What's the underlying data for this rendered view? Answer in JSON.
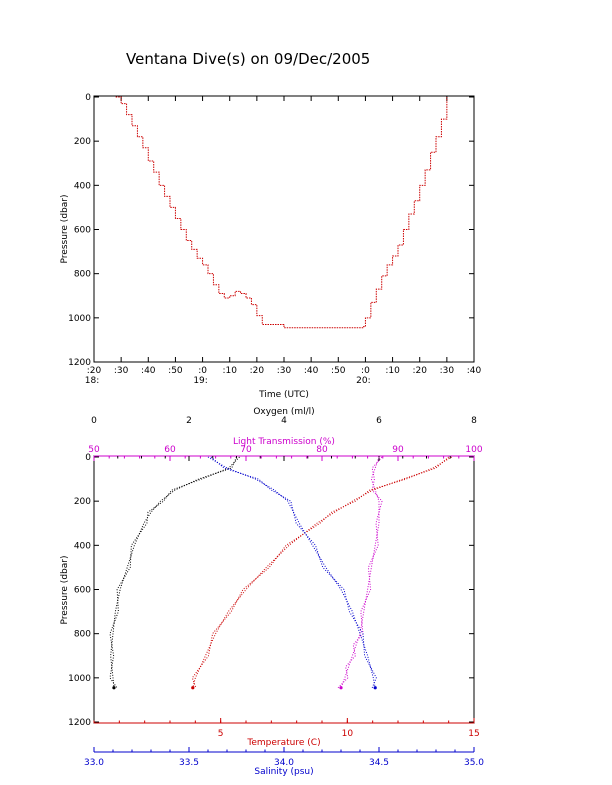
{
  "title": "Ventana Dive(s) on 09/Dec/2005",
  "chart_data": [
    {
      "type": "line",
      "xlabel": "Time (UTC)",
      "ylabel": "Pressure (dbar)",
      "ylim": [
        1200,
        0
      ],
      "xlim": [
        "18:20",
        "20:40"
      ],
      "y_ticks": [
        "0",
        "200",
        "400",
        "600",
        "800",
        "1000",
        "1200"
      ],
      "x_ticks": [
        {
          "minute": ":20",
          "hour": "18:"
        },
        {
          "minute": ":30",
          "hour": ""
        },
        {
          "minute": ":40",
          "hour": ""
        },
        {
          "minute": ":50",
          "hour": ""
        },
        {
          "minute": ":0",
          "hour": "19:"
        },
        {
          "minute": ":10",
          "hour": ""
        },
        {
          "minute": ":20",
          "hour": ""
        },
        {
          "minute": ":30",
          "hour": ""
        },
        {
          "minute": ":40",
          "hour": ""
        },
        {
          "minute": ":50",
          "hour": ""
        },
        {
          "minute": ":0",
          "hour": "20:"
        },
        {
          "minute": ":10",
          "hour": ""
        },
        {
          "minute": ":20",
          "hour": ""
        },
        {
          "minute": ":30",
          "hour": ""
        },
        {
          "minute": ":40",
          "hour": ""
        }
      ],
      "series": [
        {
          "color": "#cc0000",
          "x": [
            "18:28",
            "18:30",
            "18:32",
            "18:34",
            "18:36",
            "18:38",
            "18:40",
            "18:42",
            "18:44",
            "18:46",
            "18:48",
            "18:50",
            "18:52",
            "18:54",
            "18:56",
            "18:58",
            "19:00",
            "19:02",
            "19:04",
            "19:06",
            "19:08",
            "19:10",
            "19:12",
            "19:14",
            "19:16",
            "19:18",
            "19:20",
            "19:22",
            "19:30",
            "19:40",
            "19:50",
            "19:59",
            "20:00",
            "20:02",
            "20:04",
            "20:06",
            "20:08",
            "20:10",
            "20:12",
            "20:14",
            "20:16",
            "20:18",
            "20:20",
            "20:22",
            "20:24",
            "20:26",
            "20:28",
            "20:30"
          ],
          "y": [
            0,
            30,
            80,
            130,
            180,
            230,
            290,
            340,
            400,
            450,
            500,
            550,
            600,
            650,
            690,
            730,
            760,
            800,
            850,
            890,
            910,
            900,
            880,
            890,
            910,
            940,
            990,
            1030,
            1045,
            1045,
            1045,
            1040,
            1000,
            930,
            870,
            810,
            760,
            720,
            670,
            600,
            530,
            470,
            400,
            330,
            250,
            180,
            100,
            0
          ]
        }
      ]
    },
    {
      "type": "scatter",
      "ylabel": "Pressure (dbar)",
      "ylim": [
        1200,
        0
      ],
      "y_ticks": [
        "0",
        "200",
        "400",
        "600",
        "800",
        "1000",
        "1200"
      ],
      "axes": {
        "oxygen": {
          "label": "Oxygen (ml/l)",
          "range": [
            0,
            8
          ],
          "ticks": [
            "0",
            "2",
            "4",
            "6",
            "8"
          ],
          "color": "#000000"
        },
        "light": {
          "label": "Light Transmission (%)",
          "range": [
            50,
            100
          ],
          "ticks": [
            "50",
            "60",
            "70",
            "80",
            "90",
            "100"
          ],
          "color": "#cc00cc"
        },
        "temperature": {
          "label": "Temperature (C)",
          "range": [
            0,
            15
          ],
          "ticks": [
            "5",
            "10",
            "15"
          ],
          "color": "#cc0000"
        },
        "salinity": {
          "label": "Salinity (psu)",
          "range": [
            33.0,
            35.0
          ],
          "ticks": [
            "33.0",
            "33.5",
            "34.0",
            "34.5",
            "35.0"
          ],
          "color": "#0000cc"
        }
      },
      "series": [
        {
          "axis": "oxygen",
          "color": "#000000",
          "pressure": [
            0,
            50,
            100,
            150,
            200,
            250,
            300,
            400,
            500,
            600,
            700,
            800,
            900,
            1000,
            1045
          ],
          "values": [
            3.0,
            2.9,
            2.2,
            1.7,
            1.4,
            1.2,
            1.05,
            0.85,
            0.7,
            0.55,
            0.45,
            0.4,
            0.35,
            0.4,
            0.42
          ]
        },
        {
          "axis": "light",
          "color": "#cc00cc",
          "pressure": [
            0,
            50,
            100,
            150,
            200,
            300,
            400,
            500,
            600,
            700,
            800,
            850,
            900,
            950,
            1000,
            1045
          ],
          "values": [
            87.5,
            87.0,
            86.5,
            87.0,
            87.5,
            87.5,
            87.0,
            86.5,
            86.0,
            85.5,
            85.0,
            84.5,
            84.0,
            83.5,
            83.0,
            82.5
          ]
        },
        {
          "axis": "temperature",
          "color": "#cc0000",
          "pressure": [
            0,
            50,
            100,
            150,
            200,
            250,
            300,
            400,
            500,
            600,
            700,
            800,
            900,
            1000,
            1045
          ],
          "values": [
            14.0,
            13.5,
            12.2,
            11.0,
            10.2,
            9.5,
            8.8,
            7.7,
            6.8,
            6.0,
            5.3,
            4.8,
            4.4,
            4.0,
            3.9
          ]
        },
        {
          "axis": "salinity",
          "color": "#0000cc",
          "pressure": [
            0,
            50,
            100,
            150,
            200,
            300,
            400,
            500,
            600,
            700,
            800,
            900,
            1000,
            1045
          ],
          "values": [
            33.6,
            33.7,
            33.85,
            33.95,
            34.02,
            34.08,
            34.15,
            34.22,
            34.3,
            34.36,
            34.4,
            34.44,
            34.47,
            34.48
          ]
        }
      ]
    }
  ]
}
